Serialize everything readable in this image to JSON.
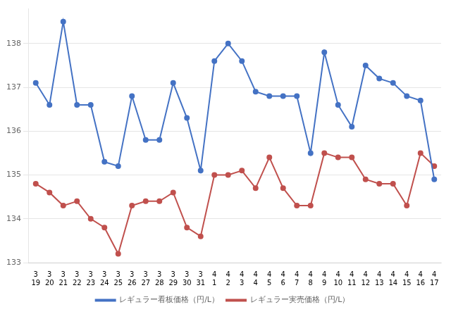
{
  "chart_data": {
    "type": "line",
    "categories": [
      [
        "3",
        "19"
      ],
      [
        "3",
        "20"
      ],
      [
        "3",
        "21"
      ],
      [
        "3",
        "22"
      ],
      [
        "3",
        "23"
      ],
      [
        "3",
        "24"
      ],
      [
        "3",
        "25"
      ],
      [
        "3",
        "26"
      ],
      [
        "3",
        "27"
      ],
      [
        "3",
        "28"
      ],
      [
        "3",
        "29"
      ],
      [
        "3",
        "30"
      ],
      [
        "3",
        "31"
      ],
      [
        "4",
        "1"
      ],
      [
        "4",
        "2"
      ],
      [
        "4",
        "3"
      ],
      [
        "4",
        "4"
      ],
      [
        "4",
        "5"
      ],
      [
        "4",
        "6"
      ],
      [
        "4",
        "7"
      ],
      [
        "4",
        "8"
      ],
      [
        "4",
        "9"
      ],
      [
        "4",
        "10"
      ],
      [
        "4",
        "11"
      ],
      [
        "4",
        "12"
      ],
      [
        "4",
        "13"
      ],
      [
        "4",
        "14"
      ],
      [
        "4",
        "15"
      ],
      [
        "4",
        "16"
      ],
      [
        "4",
        "17"
      ]
    ],
    "series": [
      {
        "name": "レギュラー看板価格（円/L）",
        "color": "#4472C4",
        "marker": "circle",
        "line_style": "solid",
        "values": [
          137.1,
          136.6,
          138.5,
          136.6,
          136.6,
          135.3,
          135.2,
          136.8,
          135.8,
          135.8,
          137.1,
          136.3,
          135.1,
          137.6,
          138.0,
          137.6,
          136.9,
          136.8,
          136.8,
          136.8,
          135.5,
          137.8,
          136.6,
          136.1,
          137.5,
          137.2,
          137.1,
          136.8,
          136.7,
          134.9
        ]
      },
      {
        "name": "レギュラー実売価格（円/L）",
        "color": "#C0504D",
        "marker": "circle",
        "line_style": "solid",
        "values": [
          134.8,
          134.6,
          134.3,
          134.4,
          134.0,
          133.8,
          133.2,
          134.3,
          134.4,
          134.4,
          134.6,
          133.8,
          133.6,
          135.0,
          135.0,
          135.1,
          134.7,
          135.4,
          134.7,
          134.3,
          134.3,
          135.5,
          135.4,
          135.4,
          134.9,
          134.8,
          134.8,
          134.3,
          135.5,
          135.2
        ]
      }
    ],
    "ylim": [
      133.0,
      138.8
    ],
    "yticks": [
      133,
      134,
      135,
      136,
      137,
      138
    ],
    "grid": true,
    "legend": "bottom"
  }
}
